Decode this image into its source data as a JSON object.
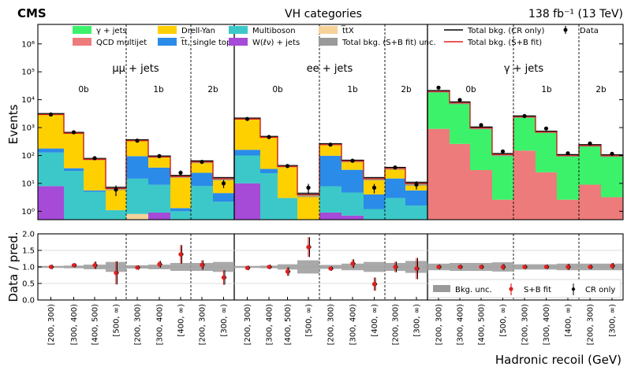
{
  "header": {
    "experiment": "CMS",
    "title": "VH categories",
    "lumi": "138 fb⁻¹ (13 TeV)"
  },
  "legend": [
    {
      "label": "γ + jets",
      "color": "#3cf26a",
      "kind": "patch"
    },
    {
      "label": "QCD multijet",
      "color": "#ee7b7b",
      "kind": "patch"
    },
    {
      "label": "Drell-Yan",
      "color": "#ffd000",
      "kind": "patch"
    },
    {
      "label": "t̅t, single top",
      "color": "#2a8be8",
      "kind": "patch"
    },
    {
      "label": "Multiboson",
      "color": "#3cc8c8",
      "kind": "patch"
    },
    {
      "label": "W(ℓν) + jets",
      "color": "#a64ad8",
      "kind": "patch"
    },
    {
      "label": "t̅tX",
      "color": "#f5d29a",
      "kind": "patch"
    },
    {
      "label": "Total bkg. (S+B fit) unc.",
      "color": "#9a9a9a",
      "kind": "patch"
    },
    {
      "label": "Total bkg. (CR only)",
      "color": "#000000",
      "kind": "line"
    },
    {
      "label": "Total bkg. (S+B fit)",
      "color": "#e02020",
      "kind": "line"
    },
    {
      "label": "Data",
      "color": "#000000",
      "kind": "marker"
    }
  ],
  "region_labels": [
    "μμ + jets",
    "ee + jets",
    "γ + jets"
  ],
  "bjet_labels": [
    "0b",
    "1b",
    "2b",
    "0b",
    "1b",
    "2b",
    "0b",
    "1b",
    "2b"
  ],
  "ratio_legend": {
    "band": "Bkg. unc.",
    "sb": "S+B fit",
    "cr": "CR only"
  },
  "chart_data": {
    "type": "bar",
    "stacked": true,
    "yscale": "log",
    "ylabel": "Events",
    "ylim": [
      0.5,
      5000000
    ],
    "y_ticks": [
      "10⁰",
      "10¹",
      "10²",
      "10³",
      "10⁴",
      "10⁵",
      "10⁶"
    ],
    "ratio_ylabel": "Data / pred.",
    "ratio_ylim": [
      0.0,
      2.0
    ],
    "ratio_ticks": [
      "0.0",
      "0.5",
      "1.0",
      "1.5",
      "2.0"
    ],
    "xlabel": "Hadronic recoil (GeV)",
    "categories": [
      "[200, 300)",
      "[300, 400)",
      "[400, 500)",
      "[500, ∞)",
      "[200, 300)",
      "[300, 400)",
      "[400, ∞)",
      "[200, 300)",
      "[300, ∞)",
      "[200, 300)",
      "[300, 400)",
      "[400, 500)",
      "[500, ∞)",
      "[200, 300)",
      "[300, 400)",
      "[400, ∞)",
      "[200, 300)",
      "[300, ∞)",
      "[200, 300)",
      "[300, 400)",
      "[400, 500)",
      "[500, ∞)",
      "[200, 300)",
      "[300, 400)",
      "[400, ∞)",
      "[200, 300)",
      "[300, ∞)"
    ],
    "series": [
      {
        "name": "W(ℓν) + jets",
        "color": "#a64ad8",
        "values": [
          8,
          0,
          0,
          0,
          0,
          0.9,
          0,
          0,
          0,
          10,
          0,
          0,
          0,
          0.9,
          0.7,
          0,
          0,
          0,
          0,
          0,
          0,
          0,
          0,
          0,
          0,
          0,
          0
        ]
      },
      {
        "name": "t̅tX",
        "color": "#f5d29a",
        "values": [
          0,
          0,
          0,
          0,
          0.8,
          0,
          0,
          0,
          0,
          0,
          0,
          0,
          0,
          0,
          0,
          0,
          0,
          0,
          0,
          0,
          0,
          0,
          0,
          0,
          0,
          0,
          0
        ]
      },
      {
        "name": "Multiboson",
        "color": "#3cc8c8",
        "values": [
          120,
          28,
          5,
          1.1,
          14,
          8,
          1,
          8,
          2.2,
          90,
          23,
          3,
          0,
          7,
          4,
          1.2,
          3,
          1.6,
          0,
          0,
          0,
          0,
          0,
          0,
          0,
          0,
          0
        ]
      },
      {
        "name": "t̅t, single top",
        "color": "#2a8be8",
        "values": [
          50,
          7,
          0.6,
          0,
          80,
          28,
          0.3,
          16,
          2.3,
          60,
          10,
          0,
          0,
          90,
          26,
          2.8,
          12,
          4,
          0,
          0,
          0,
          0,
          0,
          0,
          0,
          0,
          0
        ]
      },
      {
        "name": "Drell-Yan",
        "color": "#ffd000",
        "values": [
          2800,
          600,
          68,
          5.6,
          250,
          53,
          16.7,
          36,
          10.5,
          1900,
          420,
          38,
          4,
          150,
          33,
          11,
          20,
          4.4,
          0,
          0,
          0,
          0,
          0,
          0,
          0,
          0,
          0
        ]
      },
      {
        "name": "QCD multijet",
        "color": "#ee7b7b",
        "values": [
          0,
          0,
          0,
          0,
          0,
          0,
          0,
          0,
          0,
          0,
          0,
          0,
          0,
          0,
          0,
          0,
          0,
          0,
          900,
          260,
          30,
          2.6,
          150,
          25,
          2.6,
          9,
          3.2
        ]
      },
      {
        "name": "γ + jets",
        "color": "#3cf26a",
        "values": [
          0,
          0,
          0,
          0,
          0,
          0,
          0,
          0,
          0,
          0,
          0,
          0,
          0,
          0,
          0,
          0,
          0,
          0,
          19000,
          7500,
          950,
          107,
          2300,
          675,
          98,
          220,
          96
        ]
      }
    ],
    "data": [
      2950,
      680,
      80,
      6,
      340,
      95,
      24,
      59,
      10,
      2040,
      460,
      42,
      7,
      245,
      65,
      7,
      37,
      9,
      27000,
      9800,
      1230,
      140,
      2600,
      930,
      120,
      270,
      115
    ],
    "data_errors": [
      55,
      26,
      9,
      2.5,
      18,
      10,
      5,
      8,
      3.2,
      45,
      21,
      6.5,
      2.6,
      15,
      8,
      2.6,
      6,
      3,
      165,
      99,
      35,
      12,
      51,
      30,
      11,
      16,
      11
    ],
    "ratio": [
      1.0,
      1.05,
      1.05,
      0.82,
      0.98,
      1.08,
      1.38,
      1.06,
      0.68,
      0.97,
      1.0,
      0.86,
      1.6,
      0.95,
      1.1,
      0.48,
      1.0,
      0.95,
      1.0,
      1.0,
      1.0,
      1.0,
      1.0,
      1.0,
      1.0,
      1.0,
      1.03
    ],
    "ratio_errors": [
      0.02,
      0.04,
      0.11,
      0.35,
      0.05,
      0.1,
      0.28,
      0.14,
      0.22,
      0.02,
      0.05,
      0.13,
      0.3,
      0.06,
      0.13,
      0.2,
      0.16,
      0.32,
      0.01,
      0.01,
      0.03,
      0.09,
      0.02,
      0.03,
      0.09,
      0.06,
      0.09
    ],
    "unc_band": [
      0.03,
      0.04,
      0.07,
      0.15,
      0.05,
      0.07,
      0.12,
      0.12,
      0.15,
      0.03,
      0.04,
      0.08,
      0.2,
      0.06,
      0.1,
      0.15,
      0.12,
      0.18,
      0.1,
      0.12,
      0.12,
      0.14,
      0.08,
      0.08,
      0.1,
      0.1,
      0.1
    ]
  }
}
